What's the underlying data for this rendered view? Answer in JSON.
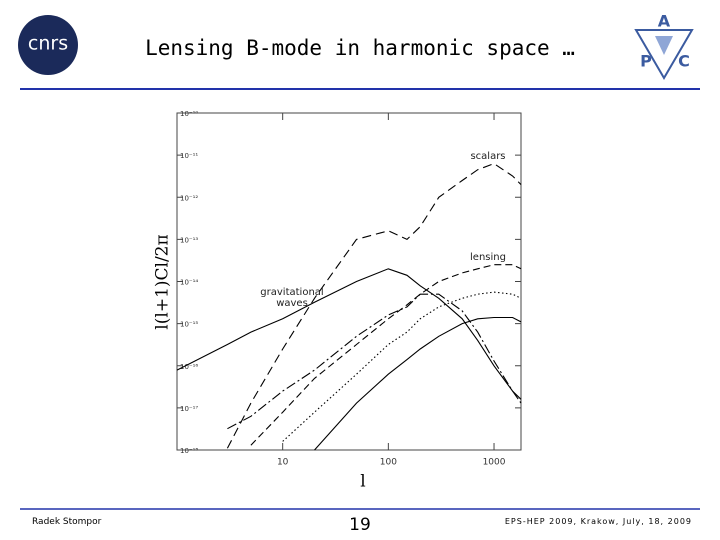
{
  "slide": {
    "title": "Lensing B-mode in harmonic space …",
    "logo_left": "cnrs",
    "logo_right": [
      "A",
      "P",
      "C"
    ],
    "footer_left": "Radek Stompor",
    "page": "19",
    "footer_right": "EPS-HEP 2009, Krakow, July, 18, 2009"
  },
  "chart_data": {
    "type": "line",
    "x_label": "l",
    "y_label": "l(l+1)Cl/2π",
    "logx": true,
    "logy": true,
    "x": [
      1,
      3,
      5,
      10,
      20,
      50,
      100,
      150,
      200,
      300,
      500,
      700,
      1000,
      1500,
      1800
    ],
    "xlim": [
      1,
      1800
    ],
    "xticks": [
      10,
      100,
      1000
    ],
    "ylim": [
      1e-18,
      1e-10
    ],
    "yticks": [
      {
        "value": 1e-10,
        "label": "10⁻¹⁰"
      },
      {
        "value": 1e-11,
        "label": "10⁻¹¹"
      },
      {
        "value": 1e-12,
        "label": "10⁻¹²"
      },
      {
        "value": 1e-13,
        "label": "10⁻¹³"
      },
      {
        "value": 1e-14,
        "label": "10⁻¹⁴"
      },
      {
        "value": 1e-15,
        "label": "10⁻¹⁵"
      },
      {
        "value": 1e-16,
        "label": "10⁻¹⁶"
      },
      {
        "value": 1e-17,
        "label": "10⁻¹⁷"
      },
      {
        "value": 1e-18,
        "label": "10⁻¹⁸"
      }
    ],
    "series": [
      {
        "name": "scalars",
        "color": "#000000",
        "dash": "9 5",
        "values": [
          null,
          1.1e-18,
          1.3e-17,
          2.5e-16,
          4e-15,
          1e-13,
          1.6e-13,
          1e-13,
          2e-13,
          1e-12,
          2.5e-12,
          4.5e-12,
          6.3e-12,
          3.2e-12,
          2e-12
        ]
      },
      {
        "name": "lensing",
        "color": "#000000",
        "dash": "7 4",
        "values": [
          null,
          null,
          1.3e-18,
          7.9e-18,
          5e-17,
          3.2e-16,
          1.3e-15,
          2.8e-15,
          5e-15,
          1e-14,
          1.6e-14,
          2e-14,
          2.5e-14,
          2.5e-14,
          2e-14
        ]
      },
      {
        "name": "gravitational waves",
        "color": "#000000",
        "dash": "none",
        "values": [
          7.9e-17,
          3.2e-16,
          6.3e-16,
          1.3e-15,
          3.2e-15,
          1e-14,
          2e-14,
          1.4e-14,
          7.9e-15,
          4e-15,
          1.3e-15,
          4e-16,
          1e-16,
          2.5e-17,
          1.6e-17
        ]
      },
      {
        "color": "#000000",
        "dash": "10 3 2 3",
        "values": [
          null,
          3.2e-18,
          6.3e-18,
          2.5e-17,
          7.9e-17,
          5e-16,
          1.6e-15,
          2.5e-15,
          5e-15,
          5e-15,
          2e-15,
          6.3e-16,
          1.3e-16,
          2.5e-17,
          1.3e-17
        ]
      },
      {
        "color": "#000000",
        "dash": "1.5 2.5",
        "values": [
          null,
          null,
          null,
          1.6e-18,
          7.9e-18,
          6.3e-17,
          3.2e-16,
          6.3e-16,
          1.3e-15,
          2.5e-15,
          4e-15,
          5e-15,
          5.6e-15,
          5e-15,
          4e-15
        ]
      },
      {
        "color": "#000000",
        "dash": "none",
        "values": [
          null,
          null,
          null,
          null,
          1e-18,
          1.3e-17,
          6.3e-17,
          1.4e-16,
          2.5e-16,
          5e-16,
          1e-15,
          1.3e-15,
          1.4e-15,
          1.4e-15,
          1.1e-15
        ]
      }
    ]
  }
}
